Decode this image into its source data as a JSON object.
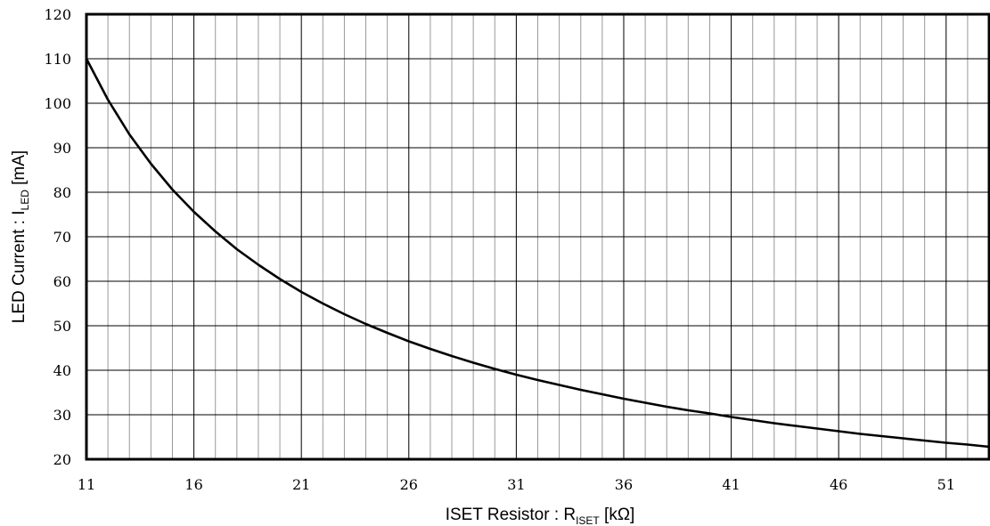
{
  "chart_data": {
    "type": "line",
    "title": "",
    "xlabel": {
      "main": "ISET Resistor : R",
      "sub": "ISET",
      "tail": " [kΩ]"
    },
    "ylabel": {
      "main": "LED Current : I",
      "sub": "LED",
      "tail": " [mA]"
    },
    "xlim": [
      11,
      53
    ],
    "ylim": [
      20,
      120
    ],
    "x_ticks": [
      "11",
      "16",
      "21",
      "26",
      "31",
      "36",
      "41",
      "46",
      "51"
    ],
    "y_ticks": [
      "20",
      "30",
      "40",
      "50",
      "60",
      "70",
      "80",
      "90",
      "100",
      "110",
      "120"
    ],
    "x_minor_step": 1,
    "y_major_step": 10,
    "grid": true,
    "legend": "none",
    "line_color": "#000000",
    "series": [
      {
        "x": [
          11,
          12,
          13,
          14,
          15,
          16,
          17,
          18,
          19,
          20,
          21,
          22,
          23,
          24,
          25,
          26,
          27,
          28,
          29,
          30,
          31,
          32,
          33,
          34,
          35,
          36,
          37,
          38,
          39,
          40,
          41,
          42,
          43,
          44,
          45,
          46,
          47,
          48,
          49,
          50,
          51,
          52,
          53
        ],
        "y": [
          110,
          100.8,
          93,
          86.4,
          80.6,
          75.6,
          71.2,
          67.2,
          63.7,
          60.5,
          57.6,
          55,
          52.6,
          50.4,
          48.4,
          46.5,
          44.8,
          43.2,
          41.7,
          40.3,
          39,
          37.8,
          36.7,
          35.6,
          34.6,
          33.6,
          32.7,
          31.8,
          31,
          30.3,
          29.5,
          28.8,
          28.1,
          27.5,
          26.9,
          26.3,
          25.7,
          25.2,
          24.7,
          24.2,
          23.7,
          23.3,
          22.8
        ]
      }
    ]
  }
}
